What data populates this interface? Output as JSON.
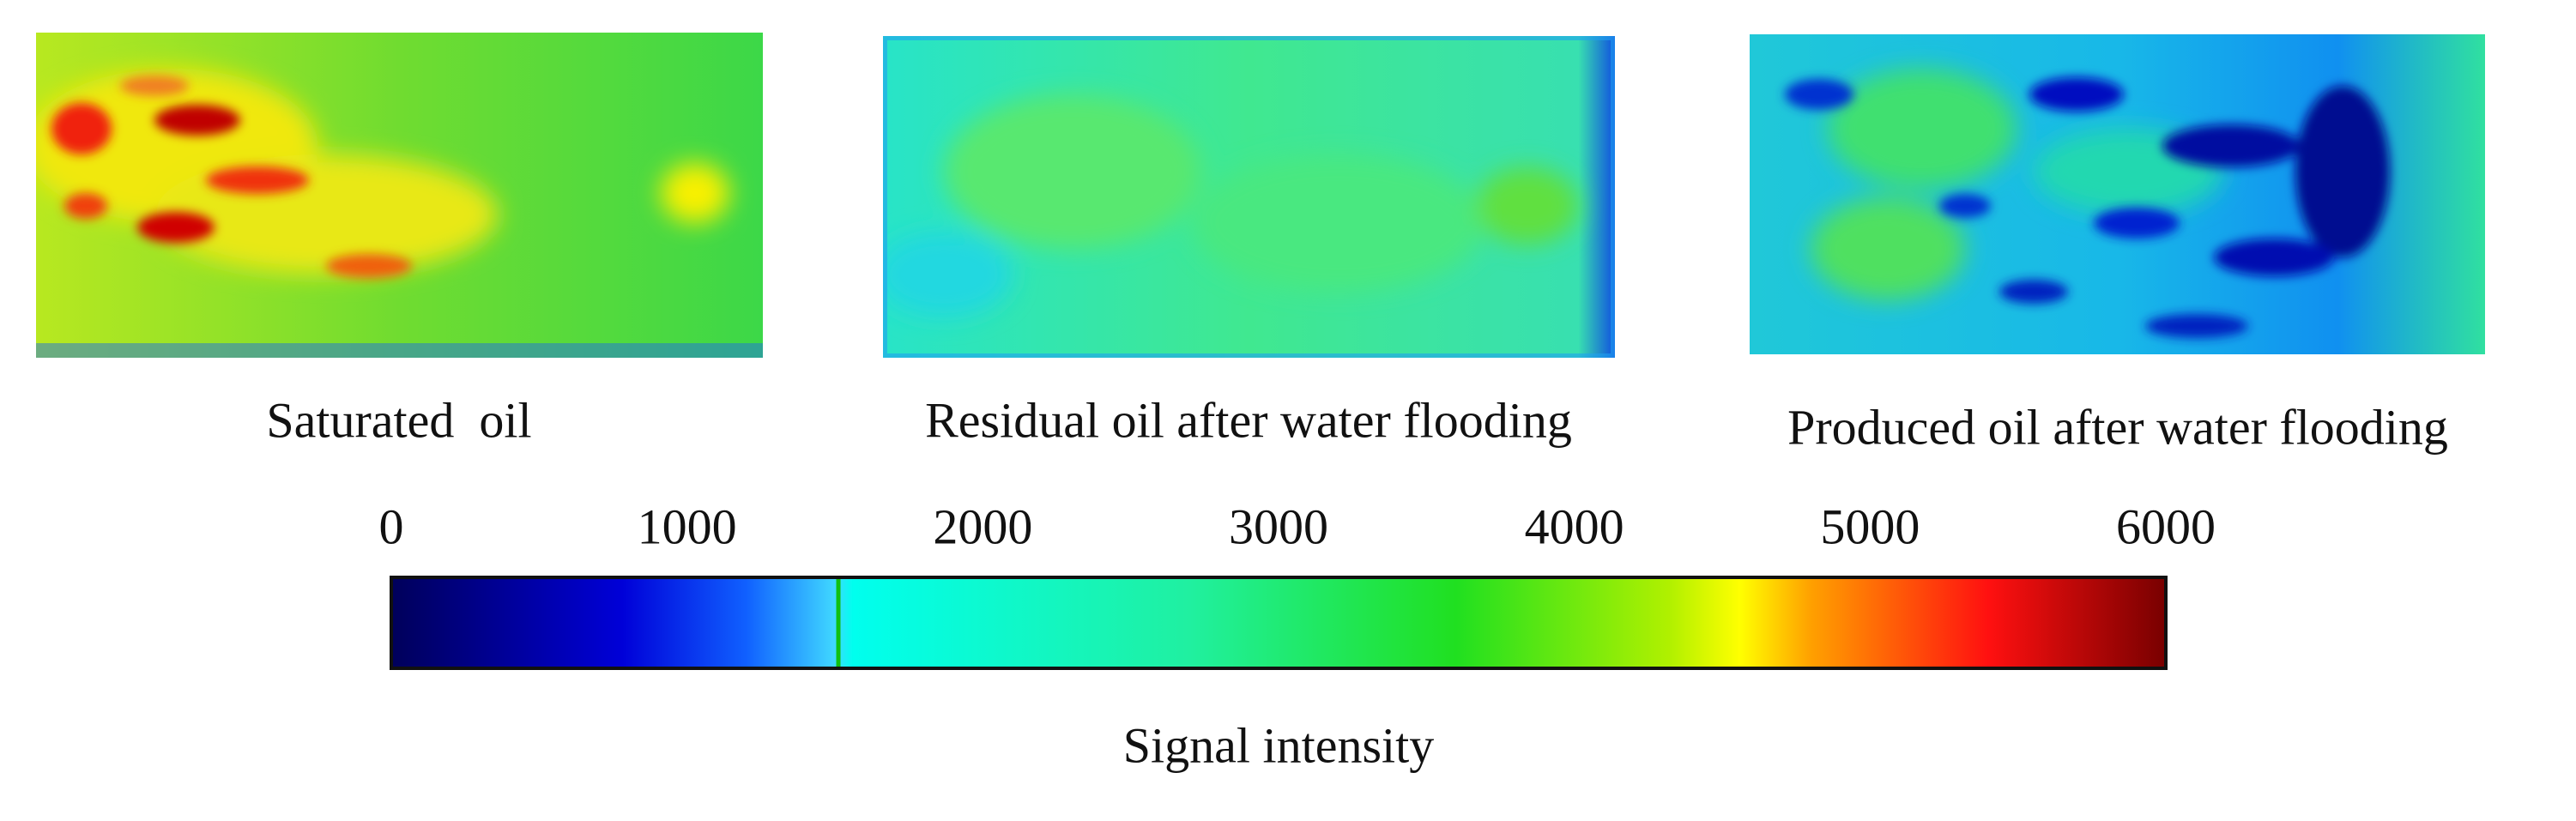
{
  "panels": [
    {
      "label": "Saturated  oil"
    },
    {
      "label": "Residual oil after water flooding"
    },
    {
      "label": "Produced oil after water flooding"
    }
  ],
  "colorbar": {
    "label": "Signal intensity",
    "lim": [
      0,
      6000
    ],
    "ticks": [
      0,
      1000,
      2000,
      3000,
      4000,
      5000,
      6000
    ]
  }
}
